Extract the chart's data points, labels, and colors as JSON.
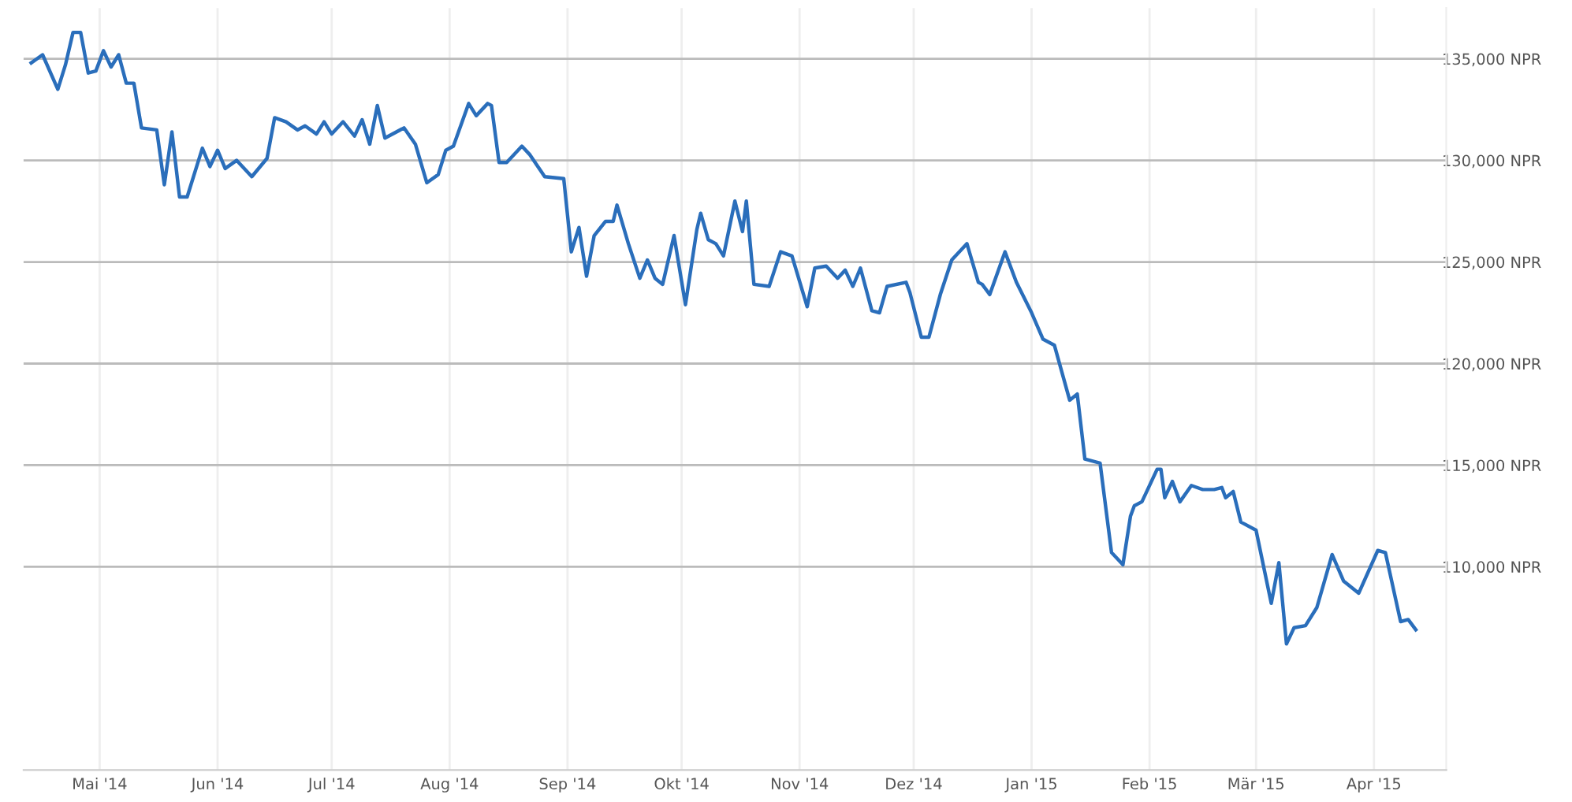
{
  "chart_data": {
    "type": "line",
    "grid": true,
    "legend": false,
    "marker": "none",
    "line_style": "solid",
    "xlim": [
      "2014-04-11",
      "2015-04-20"
    ],
    "ylim": [
      100000,
      137500
    ],
    "xticks": [
      {
        "value": "2014-05-01",
        "label": "Mai '14"
      },
      {
        "value": "2014-06-01",
        "label": "Jun '14"
      },
      {
        "value": "2014-07-01",
        "label": "Jul '14"
      },
      {
        "value": "2014-08-01",
        "label": "Aug '14"
      },
      {
        "value": "2014-09-01",
        "label": "Sep '14"
      },
      {
        "value": "2014-10-01",
        "label": "Okt '14"
      },
      {
        "value": "2014-11-01",
        "label": "Nov '14"
      },
      {
        "value": "2014-12-01",
        "label": "Dez '14"
      },
      {
        "value": "2015-01-01",
        "label": "Jan '15"
      },
      {
        "value": "2015-02-01",
        "label": "Feb '15"
      },
      {
        "value": "2015-03-01",
        "label": "Mär '15"
      },
      {
        "value": "2015-04-01",
        "label": "Apr '15"
      }
    ],
    "yticks": [
      {
        "value": 110000,
        "label": "110,000 NPR"
      },
      {
        "value": 115000,
        "label": "115,000 NPR"
      },
      {
        "value": 120000,
        "label": "120,000 NPR"
      },
      {
        "value": 125000,
        "label": "125,000 NPR"
      },
      {
        "value": 130000,
        "label": "130,000 NPR"
      },
      {
        "value": 135000,
        "label": "135,000 NPR"
      }
    ],
    "series": [
      {
        "color": "#2a6ebb",
        "x": [
          "2014-04-13",
          "2014-04-16",
          "2014-04-20",
          "2014-04-22",
          "2014-04-24",
          "2014-04-26",
          "2014-04-28",
          "2014-04-30",
          "2014-05-02",
          "2014-05-04",
          "2014-05-06",
          "2014-05-08",
          "2014-05-10",
          "2014-05-12",
          "2014-05-16",
          "2014-05-18",
          "2014-05-20",
          "2014-05-22",
          "2014-05-24",
          "2014-05-28",
          "2014-05-30",
          "2014-06-01",
          "2014-06-03",
          "2014-06-06",
          "2014-06-10",
          "2014-06-14",
          "2014-06-16",
          "2014-06-19",
          "2014-06-22",
          "2014-06-24",
          "2014-06-27",
          "2014-06-29",
          "2014-07-01",
          "2014-07-04",
          "2014-07-07",
          "2014-07-09",
          "2014-07-11",
          "2014-07-13",
          "2014-07-15",
          "2014-07-20",
          "2014-07-23",
          "2014-07-26",
          "2014-07-29",
          "2014-07-31",
          "2014-08-02",
          "2014-08-06",
          "2014-08-08",
          "2014-08-11",
          "2014-08-12",
          "2014-08-14",
          "2014-08-16",
          "2014-08-20",
          "2014-08-22",
          "2014-08-26",
          "2014-08-31",
          "2014-09-02",
          "2014-09-04",
          "2014-09-06",
          "2014-09-08",
          "2014-09-11",
          "2014-09-13",
          "2014-09-14",
          "2014-09-17",
          "2014-09-20",
          "2014-09-22",
          "2014-09-24",
          "2014-09-26",
          "2014-09-29",
          "2014-10-02",
          "2014-10-05",
          "2014-10-06",
          "2014-10-08",
          "2014-10-10",
          "2014-10-12",
          "2014-10-15",
          "2014-10-17",
          "2014-10-18",
          "2014-10-20",
          "2014-10-24",
          "2014-10-27",
          "2014-10-30",
          "2014-11-03",
          "2014-11-05",
          "2014-11-08",
          "2014-11-11",
          "2014-11-13",
          "2014-11-15",
          "2014-11-17",
          "2014-11-20",
          "2014-11-22",
          "2014-11-24",
          "2014-11-29",
          "2014-11-30",
          "2014-12-03",
          "2014-12-05",
          "2014-12-08",
          "2014-12-11",
          "2014-12-15",
          "2014-12-18",
          "2014-12-19",
          "2014-12-21",
          "2014-12-25",
          "2014-12-28",
          "2015-01-01",
          "2015-01-04",
          "2015-01-07",
          "2015-01-11",
          "2015-01-13",
          "2015-01-15",
          "2015-01-19",
          "2015-01-22",
          "2015-01-25",
          "2015-01-27",
          "2015-01-28",
          "2015-01-30",
          "2015-02-03",
          "2015-02-04",
          "2015-02-05",
          "2015-02-07",
          "2015-02-09",
          "2015-02-12",
          "2015-02-15",
          "2015-02-18",
          "2015-02-20",
          "2015-02-21",
          "2015-02-23",
          "2015-02-25",
          "2015-03-01",
          "2015-03-05",
          "2015-03-07",
          "2015-03-09",
          "2015-03-11",
          "2015-03-14",
          "2015-03-17",
          "2015-03-21",
          "2015-03-24",
          "2015-03-28",
          "2015-04-02",
          "2015-04-04",
          "2015-04-08",
          "2015-04-10",
          "2015-04-12"
        ],
        "values": [
          134800,
          135200,
          133500,
          134700,
          136300,
          136300,
          134300,
          134400,
          135400,
          134600,
          135200,
          133800,
          133800,
          131600,
          131500,
          128800,
          131400,
          128200,
          128200,
          130600,
          129700,
          130500,
          129600,
          130000,
          129200,
          130100,
          132100,
          131900,
          131500,
          131700,
          131300,
          131900,
          131300,
          131900,
          131200,
          132000,
          130800,
          132700,
          131100,
          131600,
          130800,
          128900,
          129300,
          130500,
          130700,
          132800,
          132200,
          132800,
          132700,
          129900,
          129900,
          130700,
          130300,
          129200,
          129100,
          125500,
          126700,
          124300,
          126300,
          127000,
          127000,
          127800,
          125900,
          124200,
          125100,
          124200,
          123900,
          126300,
          122900,
          126600,
          127400,
          126100,
          125900,
          125300,
          128000,
          126500,
          128000,
          123900,
          123800,
          125500,
          125300,
          122800,
          124700,
          124800,
          124200,
          124600,
          123800,
          124700,
          122600,
          122500,
          123800,
          124000,
          123500,
          121300,
          121300,
          123400,
          125100,
          125900,
          124000,
          123900,
          123400,
          125500,
          124000,
          122500,
          121200,
          120900,
          118200,
          118500,
          115300,
          115100,
          110700,
          110100,
          112500,
          113000,
          113200,
          114800,
          114800,
          113400,
          114200,
          113200,
          114000,
          113800,
          113800,
          113900,
          113400,
          113700,
          112200,
          111800,
          108200,
          110200,
          106200,
          107000,
          107100,
          108000,
          110600,
          109300,
          108700,
          110800,
          110700,
          107300,
          107400,
          106900
        ]
      }
    ]
  }
}
